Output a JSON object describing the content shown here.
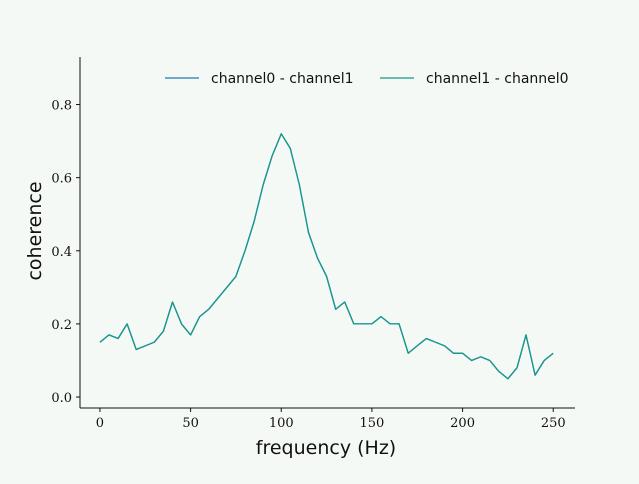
{
  "chart_data": {
    "type": "line",
    "title": "",
    "xlabel": "frequency (Hz)",
    "ylabel": "coherence",
    "xlim": [
      -11,
      262
    ],
    "ylim": [
      -0.03,
      0.93
    ],
    "xticks": [
      0,
      50,
      100,
      150,
      200,
      250
    ],
    "yticks": [
      0.0,
      0.2,
      0.4,
      0.6,
      0.8
    ],
    "xtick_labels": [
      "0",
      "50",
      "100",
      "150",
      "200",
      "250"
    ],
    "ytick_labels": [
      "0.0",
      "0.2",
      "0.4",
      "0.6",
      "0.8"
    ],
    "grid": false,
    "legend_position": "top-center",
    "x": [
      0,
      5,
      10,
      15,
      20,
      25,
      30,
      35,
      40,
      45,
      50,
      55,
      60,
      65,
      70,
      75,
      80,
      85,
      90,
      95,
      100,
      105,
      110,
      115,
      120,
      125,
      130,
      135,
      140,
      145,
      150,
      155,
      160,
      165,
      170,
      175,
      180,
      185,
      190,
      195,
      200,
      205,
      210,
      215,
      220,
      225,
      230,
      235,
      240,
      245,
      250
    ],
    "series": [
      {
        "name": "channel0 - channel1",
        "color": "#1f77b4",
        "values": [
          0.15,
          0.17,
          0.16,
          0.2,
          0.13,
          0.14,
          0.15,
          0.18,
          0.26,
          0.2,
          0.17,
          0.22,
          0.24,
          0.27,
          0.3,
          0.33,
          0.4,
          0.48,
          0.58,
          0.66,
          0.72,
          0.68,
          0.58,
          0.45,
          0.38,
          0.33,
          0.24,
          0.26,
          0.2,
          0.2,
          0.2,
          0.22,
          0.2,
          0.2,
          0.12,
          0.14,
          0.16,
          0.15,
          0.14,
          0.12,
          0.12,
          0.1,
          0.11,
          0.1,
          0.07,
          0.05,
          0.08,
          0.17,
          0.06,
          0.1,
          0.12
        ]
      },
      {
        "name": "channel1 - channel0",
        "color": "#17998a",
        "values": [
          0.15,
          0.17,
          0.16,
          0.2,
          0.13,
          0.14,
          0.15,
          0.18,
          0.26,
          0.2,
          0.17,
          0.22,
          0.24,
          0.27,
          0.3,
          0.33,
          0.4,
          0.48,
          0.58,
          0.66,
          0.72,
          0.68,
          0.58,
          0.45,
          0.38,
          0.33,
          0.24,
          0.26,
          0.2,
          0.2,
          0.2,
          0.22,
          0.2,
          0.2,
          0.12,
          0.14,
          0.16,
          0.15,
          0.14,
          0.12,
          0.12,
          0.1,
          0.11,
          0.1,
          0.07,
          0.05,
          0.08,
          0.17,
          0.06,
          0.1,
          0.12
        ]
      }
    ]
  }
}
